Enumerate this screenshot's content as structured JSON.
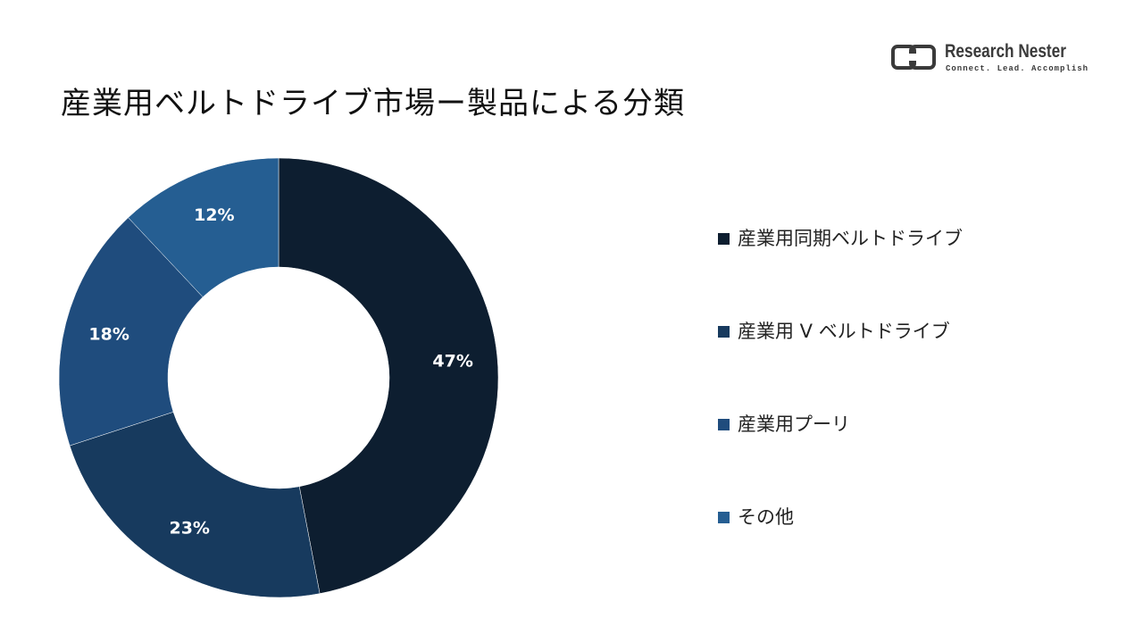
{
  "title": "産業用ベルトドライブ市場ー製品による分類",
  "logo": {
    "name": "Research Nester",
    "tagline": "Connect. Lead. Accomplish",
    "color": "#3a3a3a"
  },
  "chart_data": {
    "type": "pie",
    "variant": "donut",
    "title": "産業用ベルトドライブ市場ー製品による分類",
    "categories": [
      "産業用同期ベルトドライブ",
      "産業用 V ベルトドライブ",
      "産業用プーリ",
      "その他"
    ],
    "values": [
      47,
      23,
      18,
      12
    ],
    "value_labels": [
      "47%",
      "23%",
      "18%",
      "12%"
    ],
    "colors": [
      "#0d1e30",
      "#173a5e",
      "#1f4c7d",
      "#255e92"
    ],
    "start": "12 o'clock",
    "direction": "clockwise",
    "legend_position": "right"
  }
}
